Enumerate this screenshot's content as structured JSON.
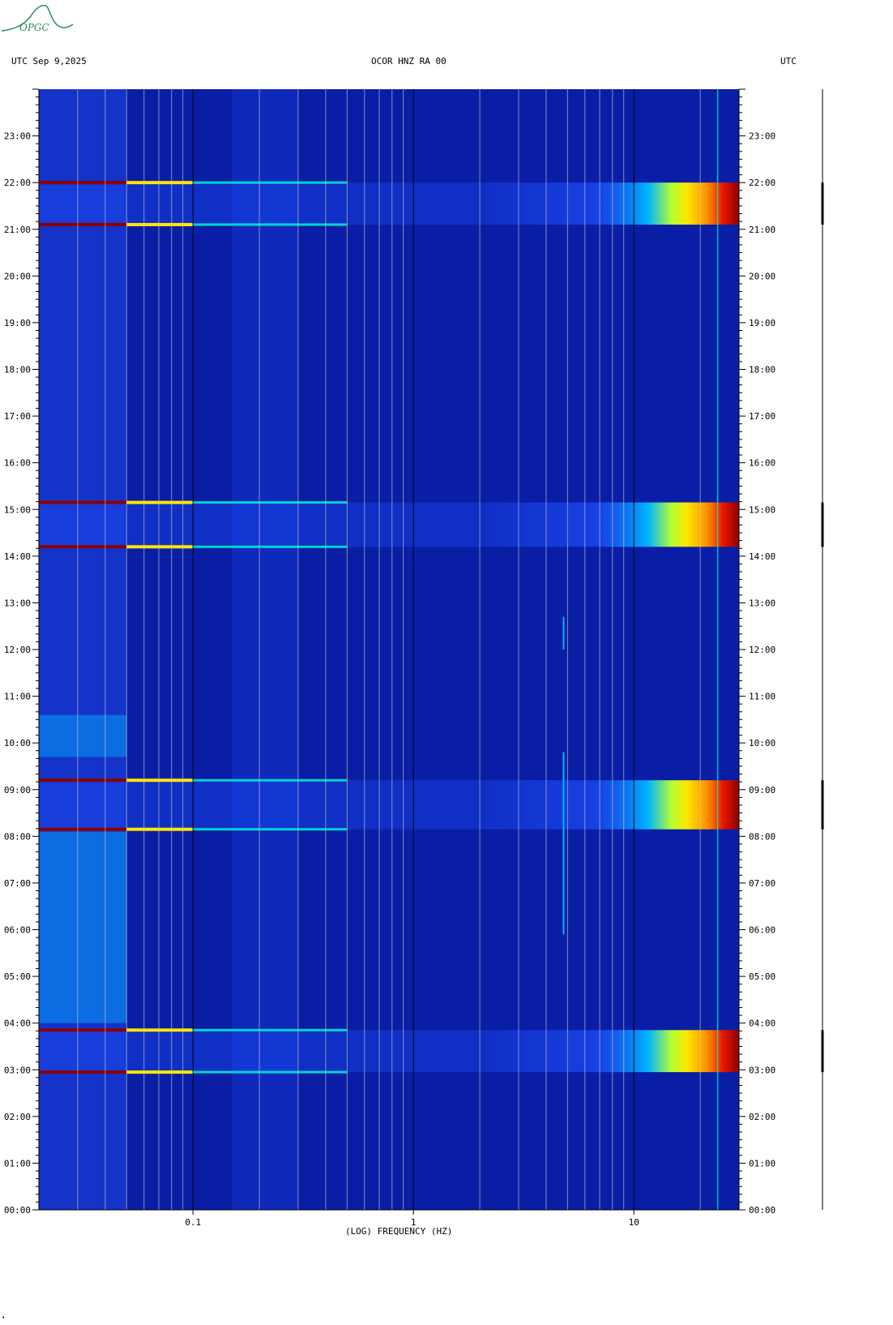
{
  "header": {
    "left": "UTC  Sep 9,2025",
    "center": "OCOR HNZ RA 00",
    "right": "UTC"
  },
  "logo": {
    "text": "OPGC",
    "color": "#2e8b57"
  },
  "footer": {
    "mark": "•"
  },
  "chart_data": {
    "type": "heatmap",
    "title": "OCOR HNZ RA 00",
    "xlabel": "(LOG) FREQUENCY (HZ)",
    "ylabel": "UTC",
    "x_scale": "log",
    "xlim": [
      0.02,
      30
    ],
    "ylim": [
      0,
      24
    ],
    "x_ticks": [
      {
        "value": 0.1,
        "label": "0.1"
      },
      {
        "value": 1,
        "label": "1"
      },
      {
        "value": 10,
        "label": "10"
      }
    ],
    "y_ticks": [
      {
        "value": 0,
        "label": "00:00"
      },
      {
        "value": 1,
        "label": "01:00"
      },
      {
        "value": 2,
        "label": "02:00"
      },
      {
        "value": 3,
        "label": "03:00"
      },
      {
        "value": 4,
        "label": "04:00"
      },
      {
        "value": 5,
        "label": "05:00"
      },
      {
        "value": 6,
        "label": "06:00"
      },
      {
        "value": 7,
        "label": "07:00"
      },
      {
        "value": 8,
        "label": "08:00"
      },
      {
        "value": 9,
        "label": "09:00"
      },
      {
        "value": 10,
        "label": "10:00"
      },
      {
        "value": 11,
        "label": "11:00"
      },
      {
        "value": 12,
        "label": "12:00"
      },
      {
        "value": 13,
        "label": "13:00"
      },
      {
        "value": 14,
        "label": "14:00"
      },
      {
        "value": 15,
        "label": "15:00"
      },
      {
        "value": 16,
        "label": "16:00"
      },
      {
        "value": 17,
        "label": "17:00"
      },
      {
        "value": 18,
        "label": "18:00"
      },
      {
        "value": 19,
        "label": "19:00"
      },
      {
        "value": 20,
        "label": "20:00"
      },
      {
        "value": 21,
        "label": "21:00"
      },
      {
        "value": 22,
        "label": "22:00"
      },
      {
        "value": 23,
        "label": "23:00"
      }
    ],
    "colormap": [
      "#00008c",
      "#0a1ec8",
      "#1e50ff",
      "#00b4ff",
      "#00ffd2",
      "#b4ff32",
      "#ffe600",
      "#ff8c00",
      "#e61400",
      "#8c0000"
    ],
    "background_color": "#0a1ea5",
    "minor_grid_color": "#c8c8c8",
    "major_grid_color": "#000000",
    "high_energy_bands": [
      {
        "start": 21.1,
        "end": 22.0
      },
      {
        "start": 14.2,
        "end": 15.15
      },
      {
        "start": 8.15,
        "end": 9.2
      },
      {
        "start": 2.95,
        "end": 3.85
      }
    ],
    "lowfreq_enhanced_periods": [
      {
        "start": 4.0,
        "end": 8.1
      },
      {
        "start": 9.7,
        "end": 10.6
      }
    ],
    "narrow_line": {
      "frequency": 4.8,
      "segments": [
        [
          5.9,
          9.8
        ],
        [
          12.0,
          12.7
        ]
      ]
    },
    "persistent_line": {
      "frequency": 24
    }
  }
}
